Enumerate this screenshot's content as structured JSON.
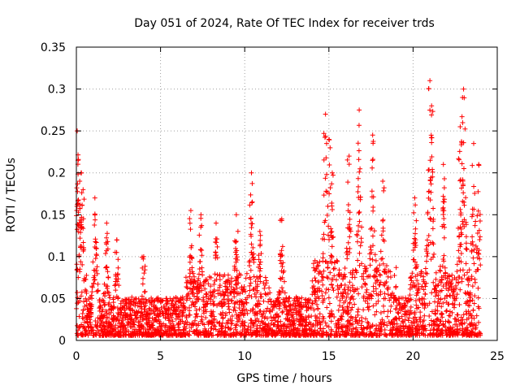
{
  "chart_data": {
    "type": "scatter",
    "title": "Day 051 of 2024, Rate Of TEC Index for receiver trds",
    "xlabel": "GPS time / hours",
    "ylabel": "ROTI / TECUs",
    "xlim": [
      0,
      25
    ],
    "ylim": [
      0,
      0.35
    ],
    "x_ticks": [
      0,
      5,
      10,
      15,
      20,
      25
    ],
    "x_tick_labels": [
      "0",
      "5",
      "10",
      "15",
      "20",
      "25"
    ],
    "y_ticks": [
      0,
      0.05,
      0.1,
      0.15,
      0.2,
      0.25,
      0.3,
      0.35
    ],
    "y_tick_labels": [
      "0",
      "0.05",
      "0.1",
      "0.15",
      "0.2",
      "0.25",
      "0.3",
      "0.35"
    ],
    "grid": true,
    "marker": "+",
    "color": "#ff0000",
    "series": [
      {
        "name": "ROTI",
        "envelope_note": "Dense scatter of several thousand points spanning 0–24 h; typical values 0.01–0.05 TECU/min with spikes.",
        "peaks": [
          {
            "x": 0.05,
            "y": 0.25
          },
          {
            "x": 0.1,
            "y": 0.215
          },
          {
            "x": 0.2,
            "y": 0.19
          },
          {
            "x": 0.3,
            "y": 0.2
          },
          {
            "x": 0.4,
            "y": 0.18
          },
          {
            "x": 1.1,
            "y": 0.17
          },
          {
            "x": 1.8,
            "y": 0.14
          },
          {
            "x": 2.4,
            "y": 0.12
          },
          {
            "x": 4.0,
            "y": 0.1
          },
          {
            "x": 6.8,
            "y": 0.155
          },
          {
            "x": 7.4,
            "y": 0.15
          },
          {
            "x": 8.3,
            "y": 0.14
          },
          {
            "x": 9.5,
            "y": 0.15
          },
          {
            "x": 10.4,
            "y": 0.2
          },
          {
            "x": 10.9,
            "y": 0.13
          },
          {
            "x": 12.2,
            "y": 0.145
          },
          {
            "x": 14.8,
            "y": 0.27
          },
          {
            "x": 15.0,
            "y": 0.24
          },
          {
            "x": 15.2,
            "y": 0.2
          },
          {
            "x": 16.2,
            "y": 0.22
          },
          {
            "x": 16.8,
            "y": 0.275
          },
          {
            "x": 17.6,
            "y": 0.245
          },
          {
            "x": 18.2,
            "y": 0.19
          },
          {
            "x": 20.1,
            "y": 0.17
          },
          {
            "x": 21.0,
            "y": 0.31
          },
          {
            "x": 21.1,
            "y": 0.28
          },
          {
            "x": 21.8,
            "y": 0.21
          },
          {
            "x": 22.8,
            "y": 0.255
          },
          {
            "x": 23.0,
            "y": 0.3
          },
          {
            "x": 23.6,
            "y": 0.235
          },
          {
            "x": 23.9,
            "y": 0.21
          }
        ]
      }
    ]
  }
}
